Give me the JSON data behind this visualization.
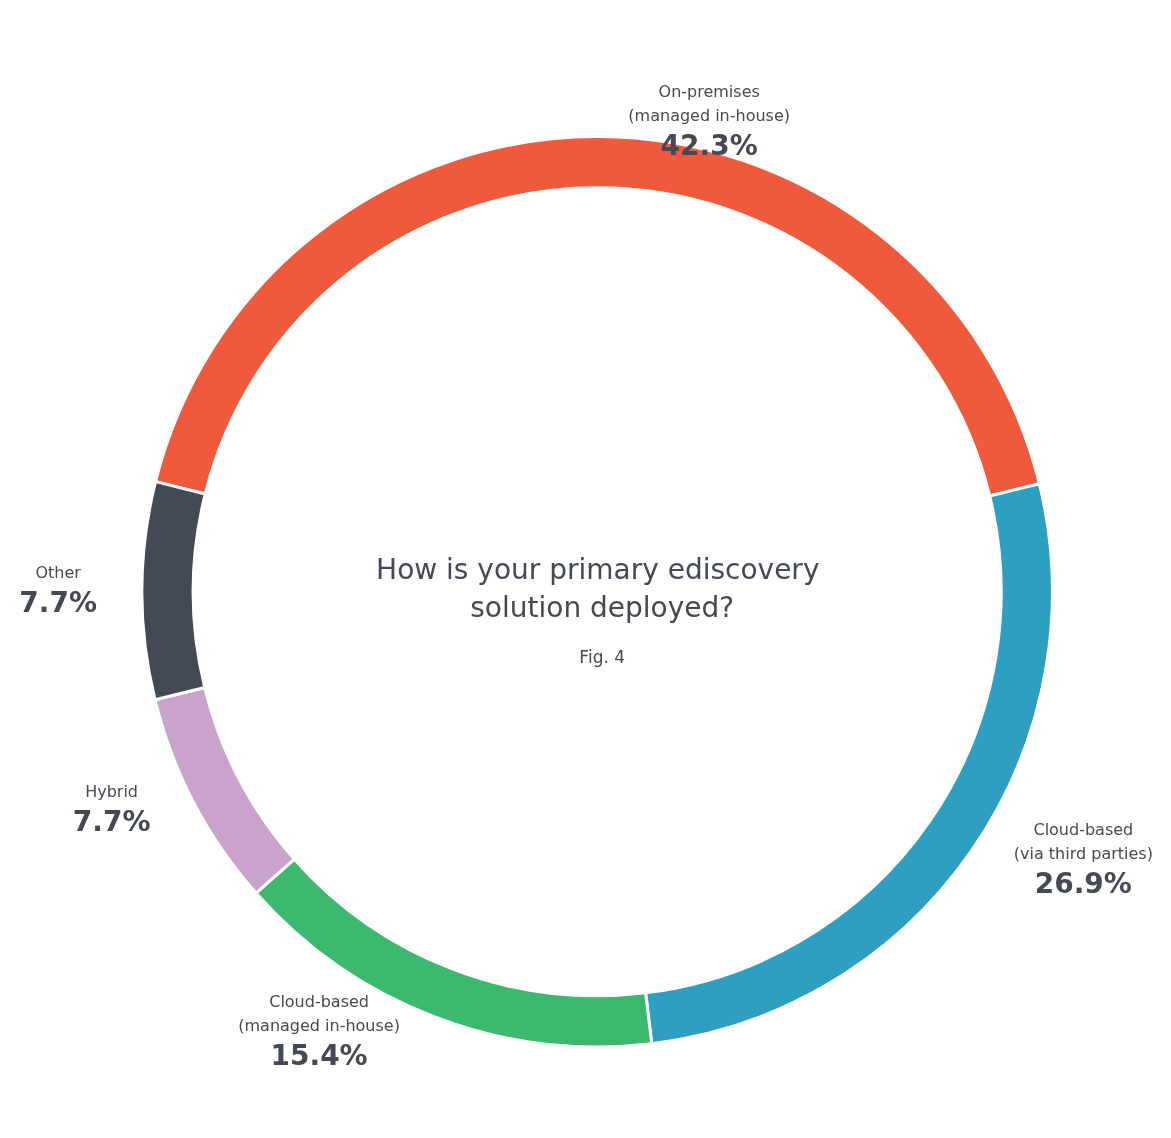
{
  "chart_data": {
    "type": "donut",
    "title": "How is your primary ediscovery solution deployed?",
    "subtitle": "Fig. 4",
    "categories": [
      "On-premises\n(managed in-house)",
      "Cloud-based\n(via third parties)",
      "Cloud-based\n(managed in-house)",
      "Hybrid",
      "Other"
    ],
    "values": [
      42.3,
      26.9,
      15.4,
      7.7,
      7.7
    ],
    "value_labels": [
      "42.3%",
      "26.9%",
      "15.4%",
      "7.7%",
      "7.7%"
    ],
    "colors": [
      "#f05a3c",
      "#2e9fc0",
      "#3cb96e",
      "#c9a3cc",
      "#434a55"
    ],
    "legend": false
  }
}
